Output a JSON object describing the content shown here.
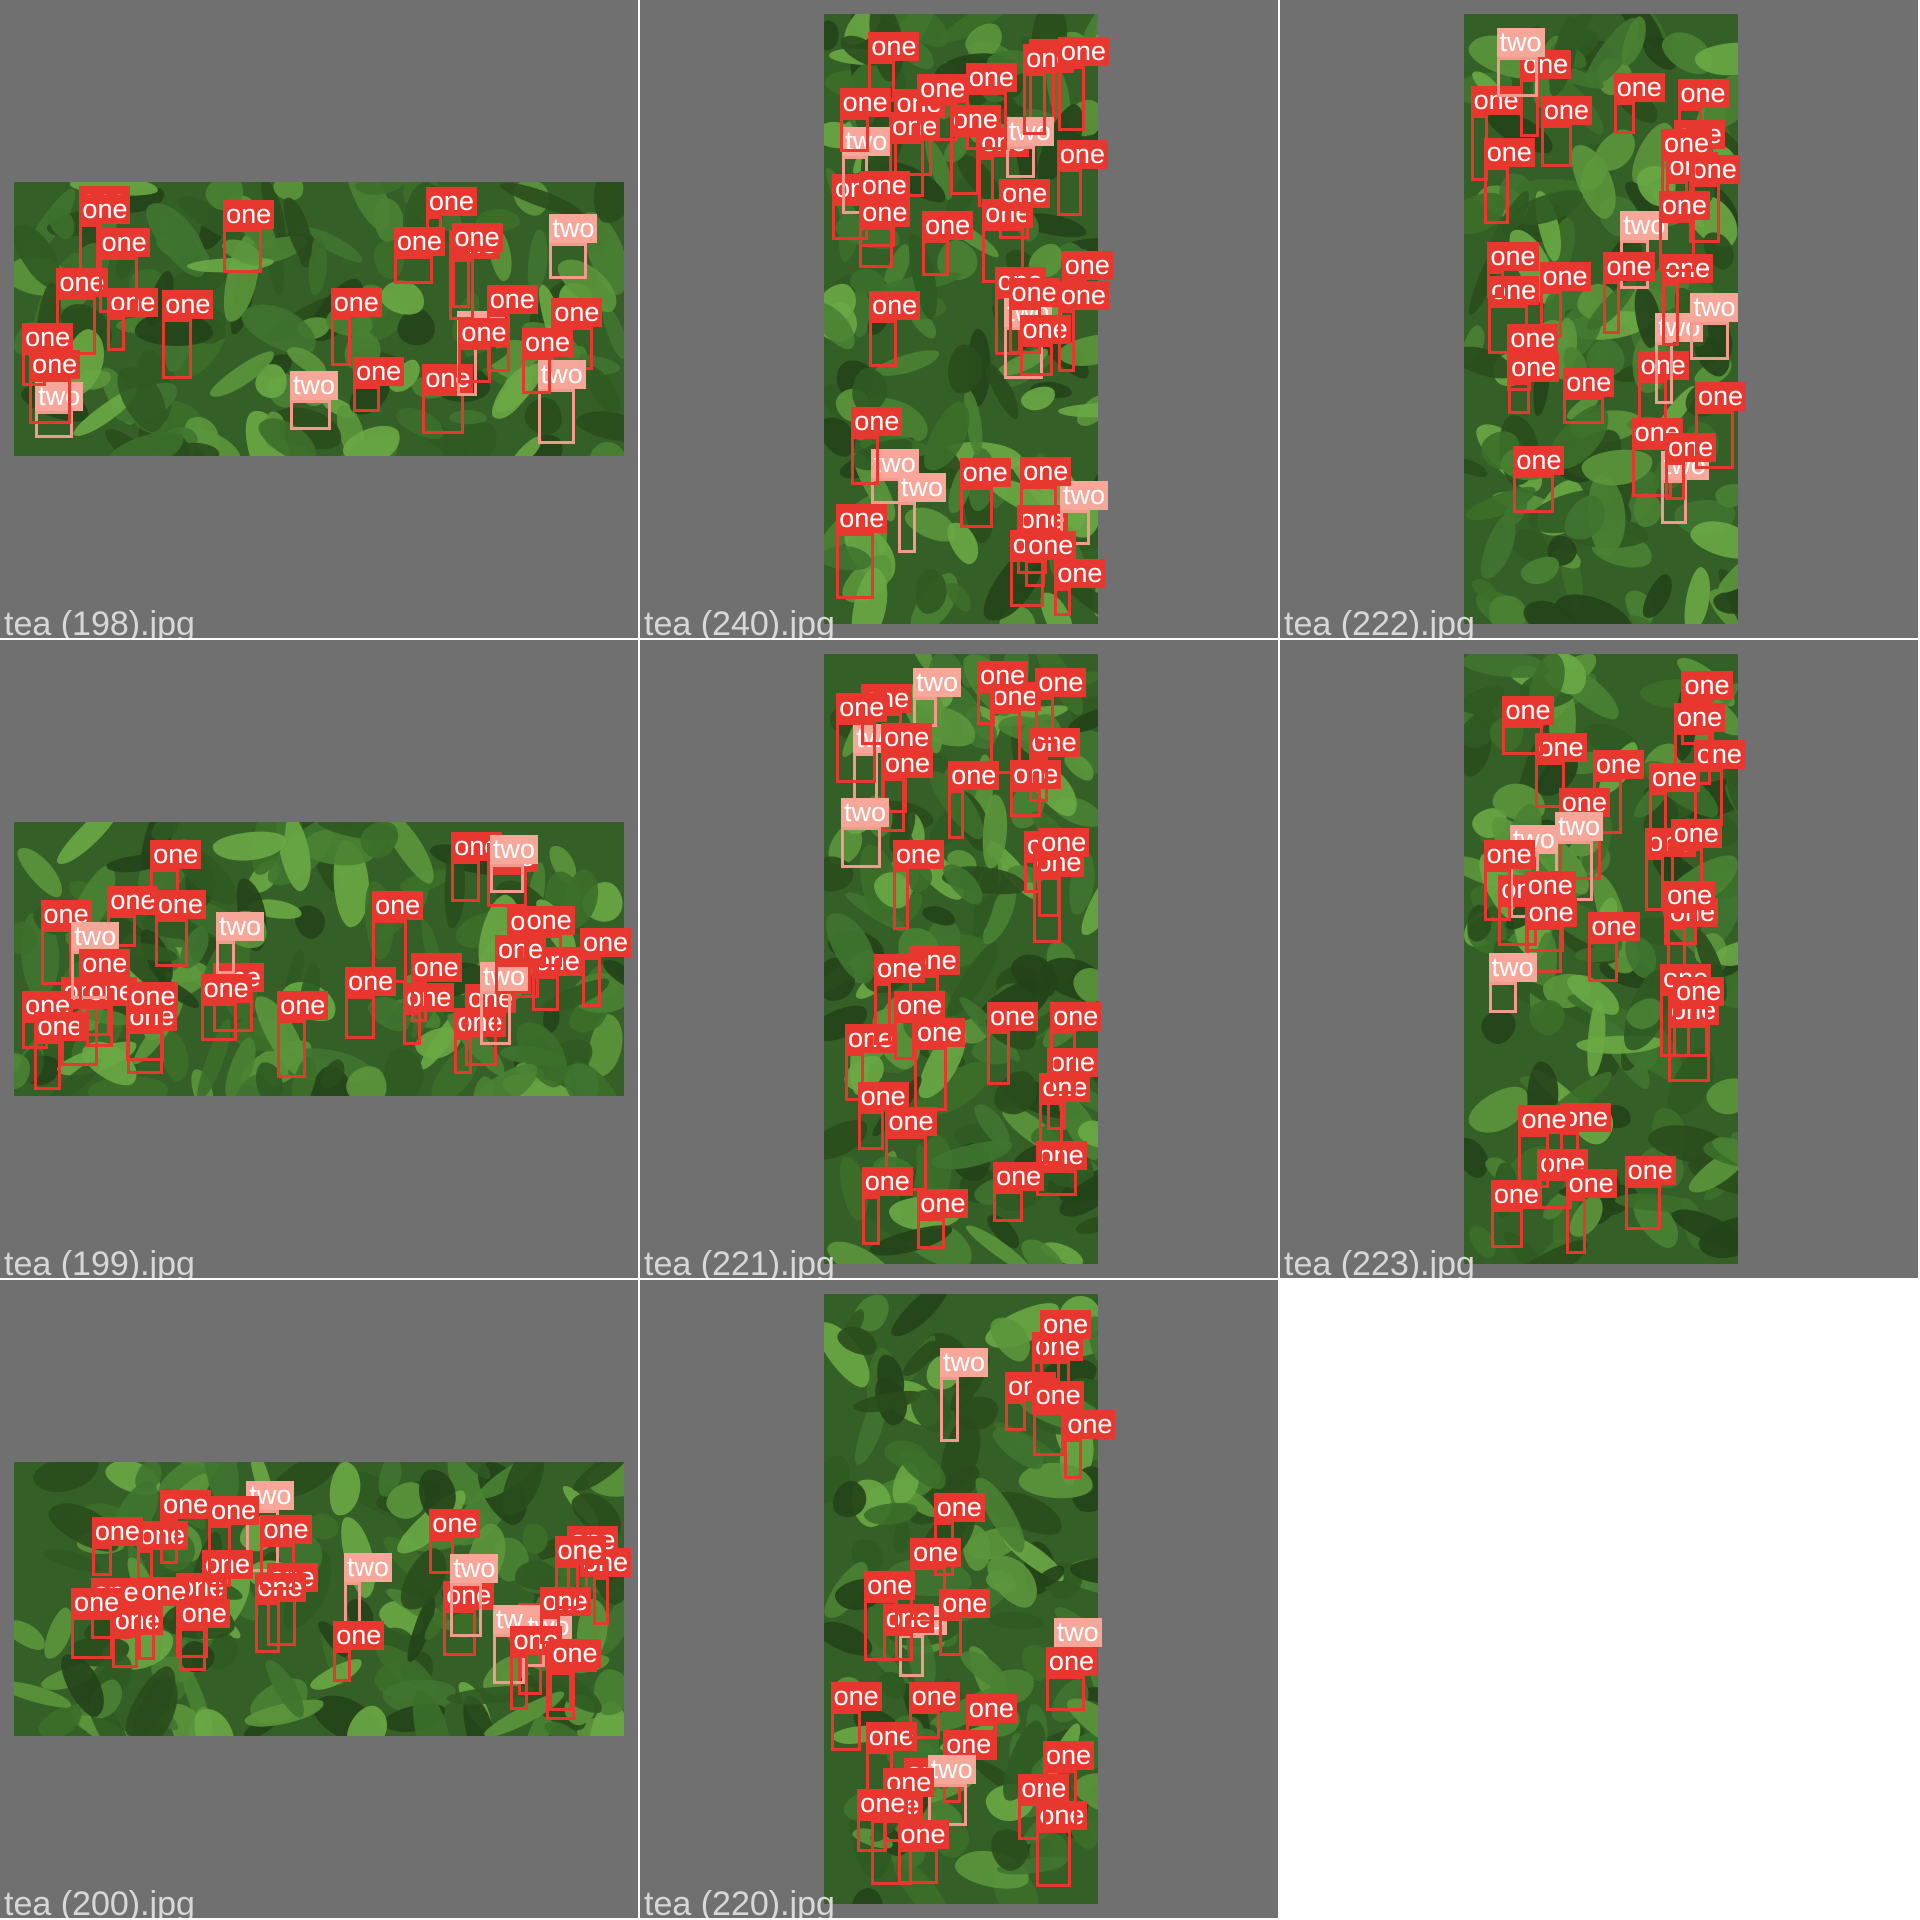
{
  "colors": {
    "background": "#707070",
    "separator": "#ffffff",
    "label_one": "#e8372e",
    "label_two": "#f7a79a",
    "filename_text": "#d8d8d8"
  },
  "class_labels": {
    "one": "one",
    "two": "two"
  },
  "tiles": [
    {
      "filename": "tea (198).jpg",
      "orientation": "landscape",
      "labels": [
        "one",
        "one",
        "one",
        "one",
        "one",
        "one",
        "two",
        "one",
        "two",
        "one",
        "two",
        "one",
        "one",
        "one",
        "one",
        "one",
        "one",
        "two",
        "one",
        "one",
        "two",
        "one",
        "one",
        "one",
        "one"
      ]
    },
    {
      "filename": "tea (240).jpg",
      "orientation": "portrait",
      "labels": [
        "one",
        "one",
        "one",
        "one",
        "one",
        "one",
        "one",
        "one",
        "two",
        "one",
        "one",
        "two",
        "two",
        "two",
        "two",
        "one",
        "one",
        "two",
        "one",
        "one",
        "one",
        "one",
        "one",
        "one",
        "one",
        "one",
        "one",
        "one",
        "one",
        "one",
        "one",
        "one",
        "one",
        "one",
        "one",
        "one",
        "one",
        "one"
      ]
    },
    {
      "filename": "tea (222).jpg",
      "orientation": "portrait",
      "labels": [
        "one",
        "one",
        "one",
        "one",
        "two",
        "one",
        "one",
        "one",
        "one",
        "one",
        "one",
        "one",
        "two",
        "two",
        "one",
        "one",
        "one",
        "two",
        "two",
        "one",
        "one",
        "one",
        "one",
        "one",
        "one",
        "one",
        "one",
        "one",
        "one"
      ]
    },
    {
      "filename": "tea (199).jpg",
      "orientation": "landscape",
      "labels": [
        "one",
        "one",
        "one",
        "one",
        "one",
        "one",
        "one",
        "one",
        "one",
        "one",
        "two",
        "two",
        "one",
        "one",
        "one",
        "one",
        "one",
        "one",
        "two",
        "one",
        "one",
        "one",
        "one",
        "one",
        "one",
        "two",
        "one",
        "one",
        "one",
        "one",
        "one"
      ]
    },
    {
      "filename": "tea (221).jpg",
      "orientation": "portrait",
      "labels": [
        "one",
        "one",
        "one",
        "one",
        "one",
        "two",
        "one",
        "one",
        "two",
        "one",
        "one",
        "one",
        "one",
        "one",
        "one",
        "one",
        "one",
        "one",
        "one",
        "one",
        "one",
        "one",
        "one",
        "one",
        "one",
        "one",
        "two",
        "one",
        "one",
        "one",
        "one",
        "one"
      ]
    },
    {
      "filename": "tea (223).jpg",
      "orientation": "portrait",
      "labels": [
        "one",
        "one",
        "one",
        "one",
        "one",
        "one",
        "one",
        "one",
        "one",
        "two",
        "one",
        "one",
        "one",
        "one",
        "one",
        "one",
        "two",
        "one",
        "one",
        "one",
        "one",
        "one",
        "one",
        "one",
        "one",
        "one",
        "one",
        "two",
        "one"
      ]
    },
    {
      "filename": "tea (200).jpg",
      "orientation": "landscape",
      "labels": [
        "one",
        "one",
        "one",
        "one",
        "two",
        "two",
        "one",
        "one",
        "one",
        "one",
        "one",
        "two",
        "one",
        "one",
        "one",
        "two",
        "one",
        "one",
        "one",
        "one",
        "one",
        "one",
        "one",
        "one",
        "one",
        "one",
        "one",
        "one",
        "two",
        "one"
      ]
    },
    {
      "filename": "tea (220).jpg",
      "orientation": "portrait",
      "labels": [
        "two",
        "one",
        "two",
        "one",
        "one",
        "one",
        "one",
        "one",
        "one",
        "one",
        "one",
        "one",
        "one",
        "one",
        "one",
        "two",
        "two",
        "one",
        "one",
        "one",
        "one",
        "one",
        "one",
        "one",
        "one",
        "one",
        "one",
        "one"
      ]
    }
  ]
}
